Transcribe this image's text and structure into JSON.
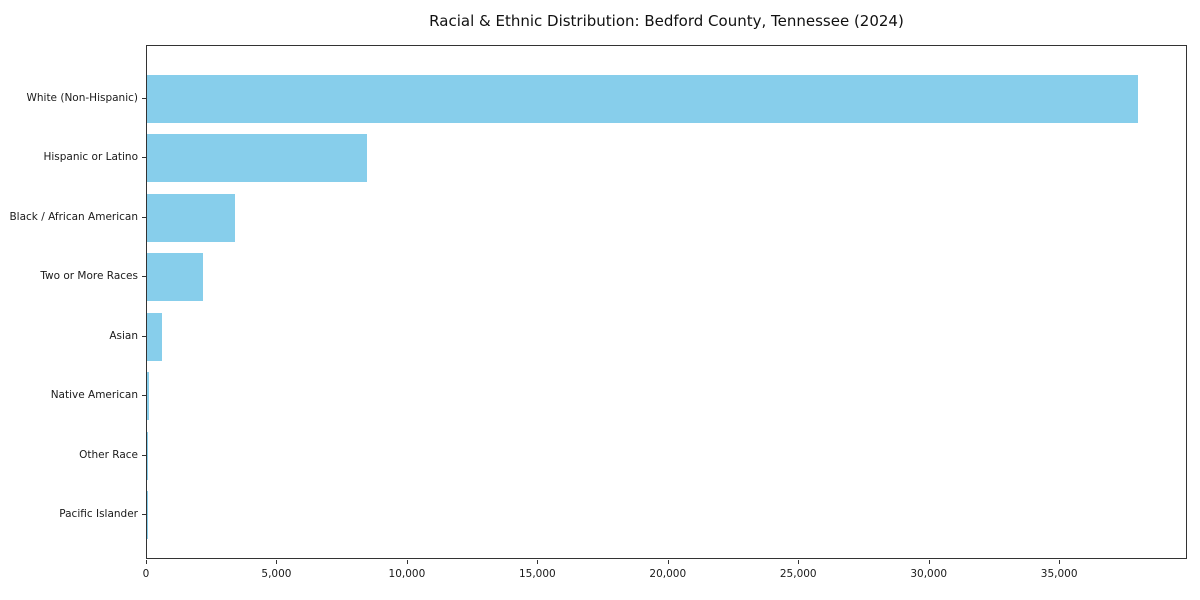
{
  "chart_data": {
    "type": "bar",
    "orientation": "horizontal",
    "title": "Racial & Ethnic Distribution: Bedford County, Tennessee (2024)",
    "categories": [
      "White (Non-Hispanic)",
      "Hispanic or Latino",
      "Black / African American",
      "Two or More Races",
      "Asian",
      "Native American",
      "Other Race",
      "Pacific Islander"
    ],
    "values": [
      38000,
      8450,
      3390,
      2130,
      580,
      70,
      25,
      12
    ],
    "bar_color": "#87CEEB",
    "xlabel": "",
    "ylabel": "",
    "xlim": [
      0,
      39900
    ],
    "x_ticks": [
      0,
      5000,
      10000,
      15000,
      20000,
      25000,
      30000,
      35000
    ],
    "x_tick_labels": [
      "0",
      "5,000",
      "10,000",
      "15,000",
      "20,000",
      "25,000",
      "30,000",
      "35,000"
    ],
    "grid": "off",
    "legend": "none",
    "frame": "box"
  }
}
